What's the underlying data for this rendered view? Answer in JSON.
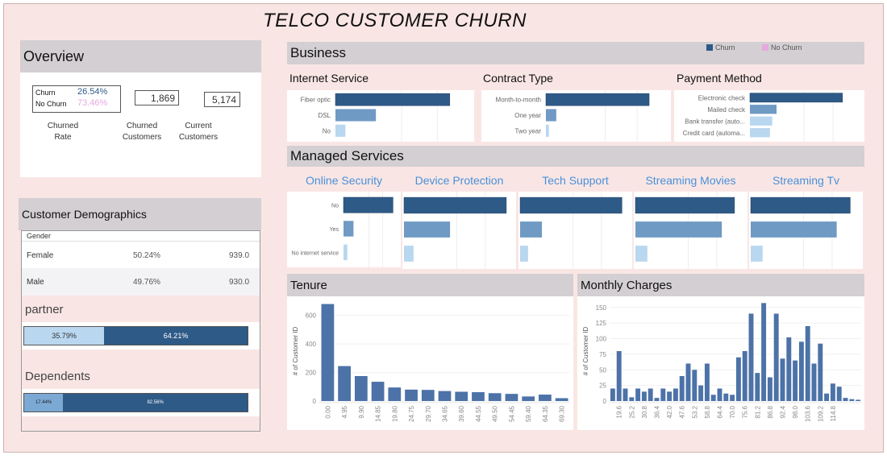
{
  "title": "TELCO CUSTOMER CHURN",
  "colors": {
    "churn": "#2e5a87",
    "mid": "#6f9ac4",
    "light": "#b9d7ef",
    "no_churn": "#e6a9df"
  },
  "overview": {
    "header": "Overview",
    "churn_label": "Churn",
    "churn_pct": "26.54%",
    "no_churn_label": "No Churn",
    "no_churn_pct": "73.46%",
    "churned_customers": "1,869",
    "current_customers": "5,174",
    "caption_rate_1": "Churned",
    "caption_rate_2": "Rate",
    "caption_churned_1": "Churned",
    "caption_churned_2": "Customers",
    "caption_current_1": "Current",
    "caption_current_2": "Customers"
  },
  "demographics": {
    "header": "Customer Demographics",
    "gender_label": "Gender",
    "rows": [
      {
        "label": "Female",
        "pct": "50.24%",
        "count": "939.0"
      },
      {
        "label": "Male",
        "pct": "49.76%",
        "count": "930.0"
      }
    ],
    "partner_label": "partner",
    "partner": {
      "left": "35.79%",
      "right": "64.21%",
      "left_frac": 0.3579
    },
    "dependents_label": "Dependents",
    "dependents": {
      "left": "17.44%",
      "right": "82.56%",
      "left_frac": 0.1744
    }
  },
  "business": {
    "header": "Business",
    "legend_churn": "Churn",
    "legend_no_churn": "No Churn",
    "internet_title": "Internet Service",
    "contract_title": "Contract Type",
    "payment_title": "Payment Method"
  },
  "managed": {
    "header": "Managed Services",
    "titles": [
      "Online Security",
      "Device Protection",
      "Tech Support",
      "Streaming Movies",
      "Streaming Tv"
    ]
  },
  "tenure_header": "Tenure",
  "monthly_header": "Monthly Charges",
  "chart_data": [
    {
      "type": "bar",
      "title": "Internet Service",
      "orientation": "horizontal",
      "categories": [
        "Fiber optic",
        "DSL",
        "No"
      ],
      "values": [
        1297,
        459,
        113
      ],
      "xlim": [
        0,
        1500
      ]
    },
    {
      "type": "bar",
      "title": "Contract Type",
      "orientation": "horizontal",
      "categories": [
        "Month-to-month",
        "One year",
        "Two year"
      ],
      "values": [
        1655,
        166,
        48
      ],
      "xlim": [
        0,
        1900
      ]
    },
    {
      "type": "bar",
      "title": "Payment Method",
      "orientation": "horizontal",
      "categories": [
        "Electronic check",
        "Mailed check",
        "Bank transfer (auto...",
        "Credit card (automa..."
      ],
      "values": [
        1071,
        308,
        258,
        232
      ],
      "xlim": [
        0,
        1250
      ]
    },
    {
      "type": "bar",
      "title": "Online Security",
      "orientation": "horizontal",
      "categories": [
        "No",
        "Yes",
        "No internet service"
      ],
      "values": [
        1461,
        295,
        113
      ],
      "xlim": [
        0,
        1500
      ]
    },
    {
      "type": "bar",
      "title": "Device Protection",
      "orientation": "horizontal",
      "categories": [
        "No",
        "Yes",
        "No internet service"
      ],
      "values": [
        1211,
        545,
        113
      ],
      "xlim": [
        0,
        1250
      ]
    },
    {
      "type": "bar",
      "title": "Tech Support",
      "orientation": "horizontal",
      "categories": [
        "No",
        "Yes",
        "No internet service"
      ],
      "values": [
        1446,
        310,
        113
      ],
      "xlim": [
        0,
        1500
      ]
    },
    {
      "type": "bar",
      "title": "Streaming Movies",
      "orientation": "horizontal",
      "categories": [
        "No",
        "Yes",
        "No internet service"
      ],
      "values": [
        938,
        818,
        113
      ],
      "xlim": [
        0,
        1000
      ]
    },
    {
      "type": "bar",
      "title": "Streaming Tv",
      "orientation": "horizontal",
      "categories": [
        "No",
        "Yes",
        "No internet service"
      ],
      "values": [
        942,
        814,
        113
      ],
      "xlim": [
        0,
        1000
      ]
    },
    {
      "type": "bar",
      "title": "Tenure",
      "ylabel": "# of Customer ID",
      "ylim": [
        0,
        700
      ],
      "yticks": [
        0,
        200,
        400,
        600
      ],
      "categories": [
        "0.00",
        "4.95",
        "9.90",
        "14.85",
        "19.80",
        "24.75",
        "29.70",
        "34.65",
        "39.60",
        "44.55",
        "49.50",
        "54.45",
        "59.40",
        "64.35",
        "69.30"
      ],
      "values": [
        680,
        245,
        175,
        135,
        95,
        80,
        78,
        70,
        65,
        62,
        55,
        50,
        32,
        45,
        20
      ]
    },
    {
      "type": "bar",
      "title": "Monthly Charges",
      "ylabel": "# of Customer ID",
      "ylim": [
        0,
        160
      ],
      "yticks": [
        0,
        25,
        50,
        75,
        100,
        125,
        150
      ],
      "tick_labels": [
        "19.6",
        "25.2",
        "30.8",
        "36.4",
        "42.0",
        "47.6",
        "53.2",
        "58.8",
        "64.4",
        "70.0",
        "75.6",
        "81.2",
        "86.8",
        "92.4",
        "98.0",
        "103.6",
        "109.2",
        "114.8"
      ],
      "values": [
        20,
        80,
        20,
        6,
        20,
        15,
        20,
        5,
        20,
        15,
        20,
        40,
        60,
        50,
        25,
        60,
        10,
        20,
        12,
        10,
        70,
        80,
        140,
        45,
        157,
        38,
        140,
        68,
        102,
        65,
        95,
        120,
        60,
        92,
        12,
        28,
        23,
        5,
        3,
        2
      ]
    }
  ]
}
